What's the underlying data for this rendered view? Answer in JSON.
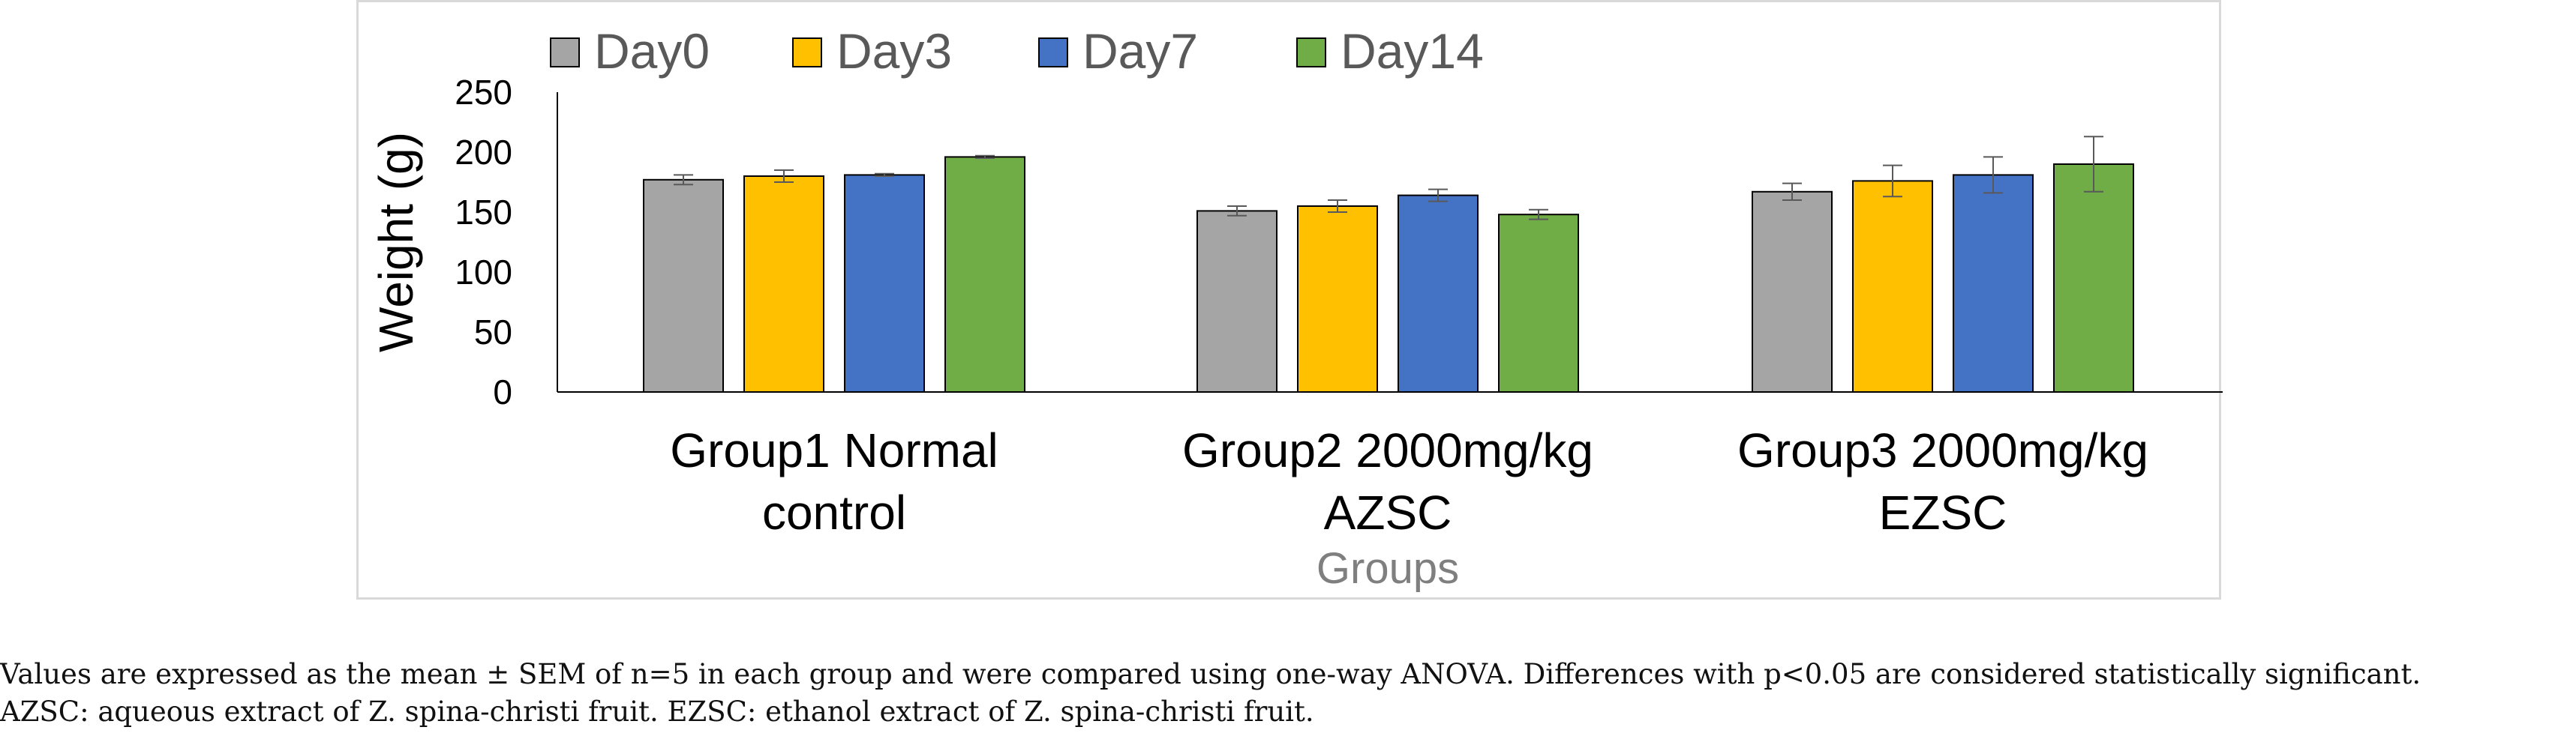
{
  "chart_data": {
    "type": "bar",
    "ylabel": "Weight (g)",
    "xlabel": "Groups",
    "ylim": [
      0,
      250
    ],
    "yticks": [
      0,
      50,
      100,
      150,
      200,
      250
    ],
    "grid": false,
    "legend_position": "top",
    "categories": [
      [
        "Group1 Normal",
        "control"
      ],
      [
        "Group2 2000mg/kg",
        "AZSC"
      ],
      [
        "Group3 2000mg/kg",
        "EZSC"
      ]
    ],
    "series": [
      {
        "name": "Day0",
        "color": "#a5a5a5",
        "values": [
          177,
          151,
          167
        ],
        "errors": [
          4,
          4,
          7
        ]
      },
      {
        "name": "Day3",
        "color": "#ffc000",
        "values": [
          180,
          155,
          176
        ],
        "errors": [
          5,
          5,
          13
        ]
      },
      {
        "name": "Day7",
        "color": "#4472c4",
        "values": [
          181,
          164,
          181
        ],
        "errors": [
          1,
          5,
          15
        ]
      },
      {
        "name": "Day14",
        "color": "#70ad47",
        "values": [
          196,
          148,
          190
        ],
        "errors": [
          1,
          4,
          23
        ]
      }
    ]
  },
  "caption": {
    "line1": "Values are expressed as the mean ± SEM of n=5 in each group and were compared using one-way ANOVA. Differences with p<0.05 are considered statistically significant.",
    "line2": "AZSC:  aqueous extract of Z. spina-christi fruit. EZSC: ethanol extract of Z. spina-christi fruit."
  }
}
